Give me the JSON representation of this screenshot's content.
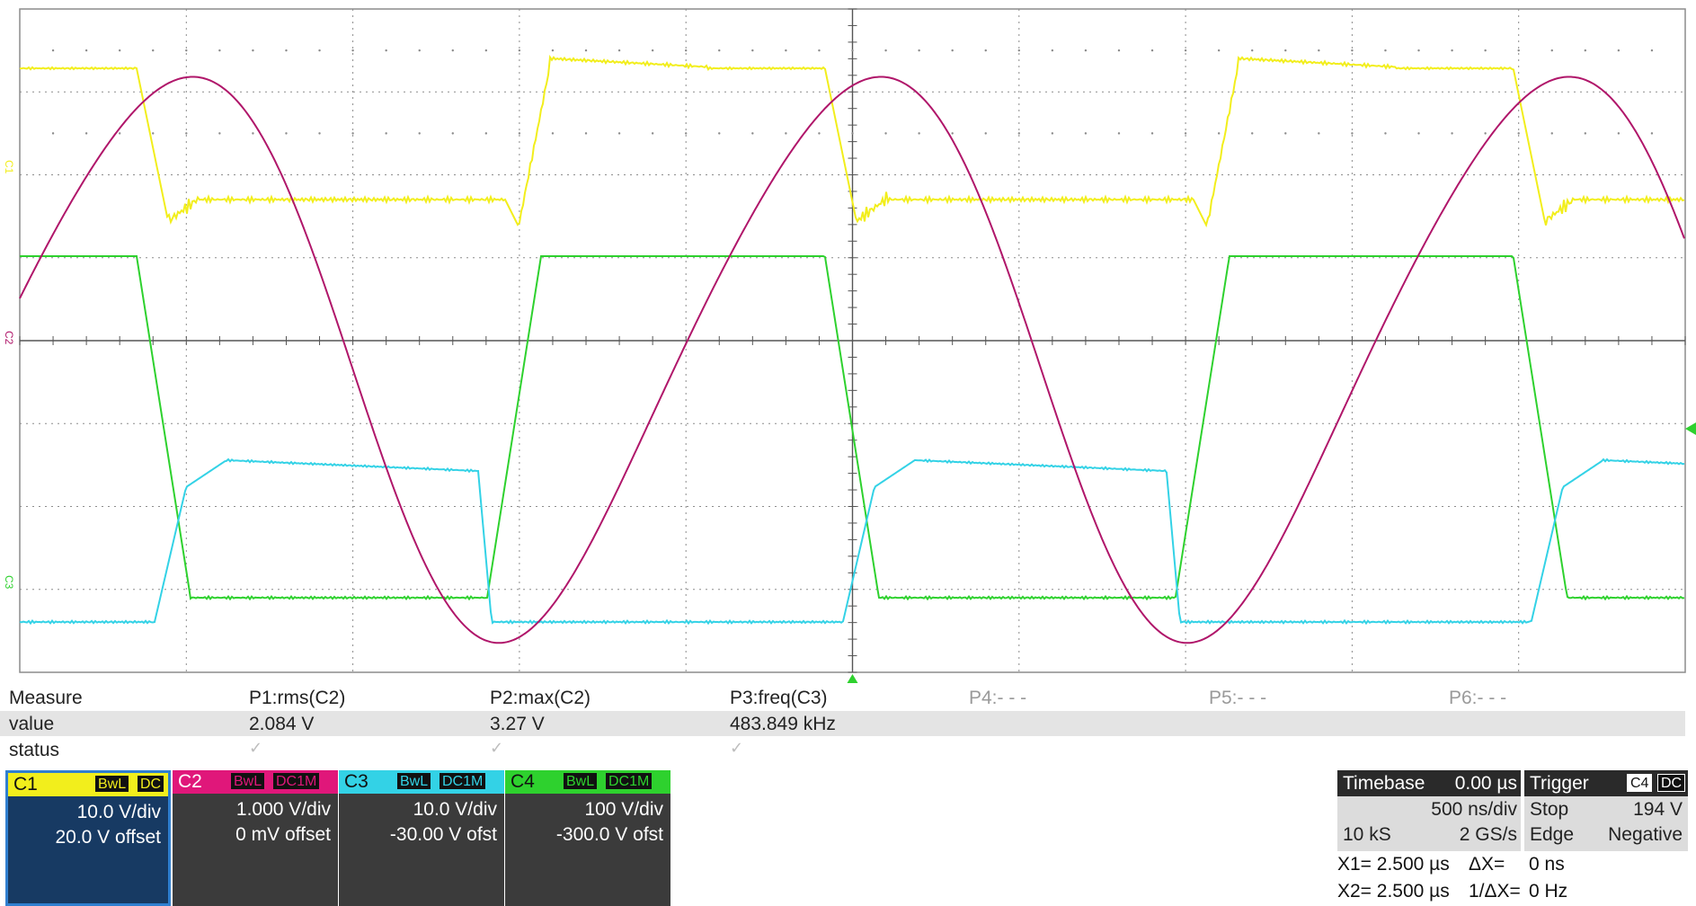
{
  "scope": {
    "ch_markers": [
      "C1",
      "C2",
      "C3"
    ],
    "colors": {
      "c1": "#f2ee1c",
      "c2": "#b0166a",
      "c3": "#33d2e6",
      "c4": "#2ed12e",
      "grid": "#8c8c8c",
      "trigger_marker": "#2ed12e"
    }
  },
  "measure": {
    "headers": [
      "Measure",
      "P1:rms(C2)",
      "P2:max(C2)",
      "P3:freq(C3)",
      "P4:- - -",
      "P5:- - -",
      "P6:- - -"
    ],
    "value_label": "value",
    "values": [
      "2.084 V",
      "3.27 V",
      "483.849 kHz"
    ],
    "status_label": "status",
    "status_check": "✓"
  },
  "channels": [
    {
      "name": "C1",
      "tag1": "BwL",
      "tag2": "DC",
      "vdiv": "10.0 V/div",
      "offset": "20.0 V offset",
      "color": "#f2ee1c"
    },
    {
      "name": "C2",
      "tag1": "BwL",
      "tag2": "DC1M",
      "vdiv": "1.000 V/div",
      "offset": "0 mV offset",
      "color": "#e0177a"
    },
    {
      "name": "C3",
      "tag1": "BwL",
      "tag2": "DC1M",
      "vdiv": "10.0 V/div",
      "offset": "-30.00 V ofst",
      "color": "#33d2e6"
    },
    {
      "name": "C4",
      "tag1": "BwL",
      "tag2": "DC1M",
      "vdiv": "100 V/div",
      "offset": "-300.0 V ofst",
      "color": "#2ed12e"
    }
  ],
  "timebase": {
    "label": "Timebase",
    "delay": "0.00 µs",
    "tdiv": "500 ns/div",
    "samples": "10 kS",
    "rate": "2 GS/s"
  },
  "trigger": {
    "label": "Trigger",
    "source": "C4",
    "coupling": "DC",
    "mode": "Stop",
    "level": "194 V",
    "type": "Edge",
    "slope": "Negative"
  },
  "cursors": {
    "x1": "X1= 2.500 µs",
    "dx_label": "ΔX=",
    "dx": "0 ns",
    "x2": "X2= 2.500 µs",
    "inv_label": "1/ΔX=",
    "inv": "0 Hz"
  }
}
